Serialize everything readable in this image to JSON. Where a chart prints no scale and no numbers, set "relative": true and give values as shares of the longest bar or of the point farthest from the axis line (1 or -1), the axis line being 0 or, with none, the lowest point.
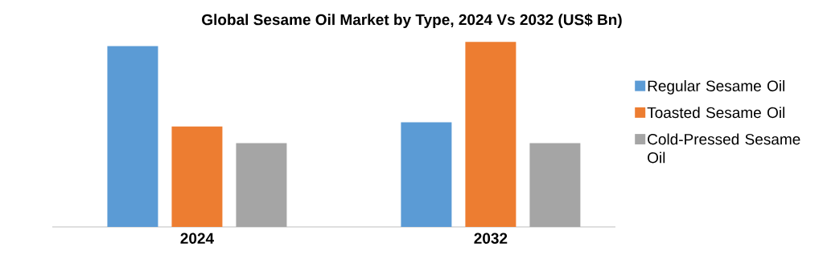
{
  "chart_data": {
    "type": "bar",
    "title": "Global Sesame Oil Market by Type, 2024 Vs 2032 (US$ Bn)",
    "categories": [
      "2024",
      "2032"
    ],
    "relative": true,
    "legend": "right",
    "series": [
      {
        "name": "Regular Sesame Oil",
        "color": "#5b9bd5",
        "values": [
          0.977,
          0.566
        ]
      },
      {
        "name": "Toasted Sesame Oil",
        "color": "#ed7d31",
        "values": [
          0.543,
          1
        ]
      },
      {
        "name": "Cold-Pressed Sesame Oil",
        "color": "#a5a5a5",
        "values": [
          0.453,
          0.453
        ]
      }
    ]
  }
}
